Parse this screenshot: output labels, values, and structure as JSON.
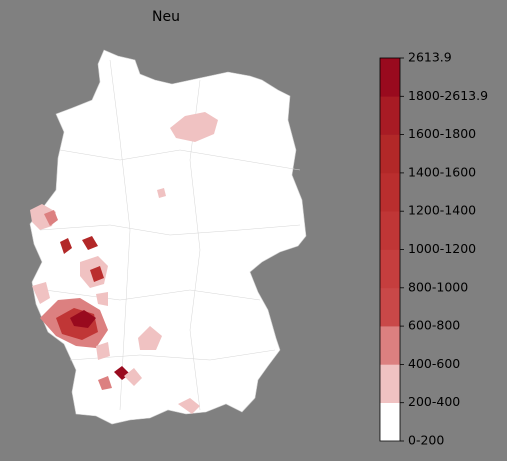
{
  "title": "Neu",
  "legend": {
    "labels": [
      "0-200",
      "200-400",
      "400-600",
      "600-800",
      "800-1000",
      "1000-1200",
      "1200-1400",
      "1400-1600",
      "1600-1800",
      "1800-2613.9",
      "2613.9"
    ],
    "colors": [
      "#ffffff",
      "#f0c2c2",
      "#dc8080",
      "#c94848",
      "#c53e3e",
      "#c03636",
      "#ba2e2e",
      "#b22828",
      "#a81b24",
      "#990a1e"
    ]
  }
}
